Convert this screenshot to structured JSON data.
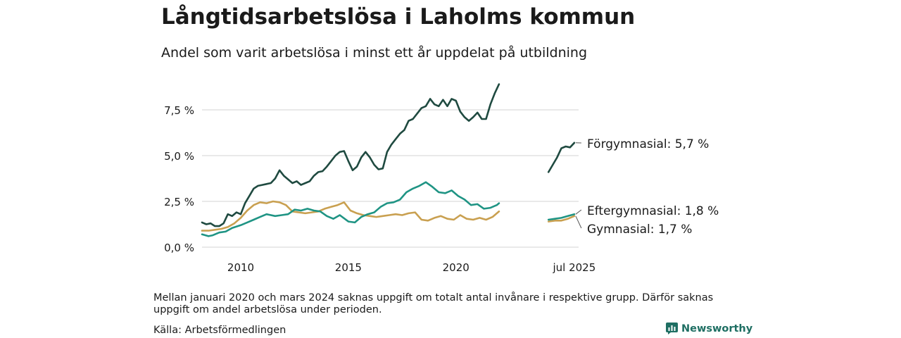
{
  "title": "Långtidsarbetslösa i Laholms kommun",
  "subtitle": "Andel som varit arbetslösa i minst ett år uppdelat på utbildning",
  "note": "Mellan januari 2020 och mars 2024 saknas uppgift om totalt antal invånare i respektive grupp. Därför saknas uppgift om andel arbetslösa under perioden.",
  "source": "Källa: Arbetsförmedlingen",
  "brand": "Newsworthy",
  "chart_data": {
    "type": "line",
    "y_ticks": [
      "0,0 %",
      "2,5 %",
      "5,0 %",
      "7,5 %"
    ],
    "y_tick_values": [
      0,
      2.5,
      5.0,
      7.5
    ],
    "ylim": [
      0,
      9.2
    ],
    "x_ticks": [
      "2010",
      "2015",
      "2020",
      "jul 2025"
    ],
    "x_tick_values": [
      2010,
      2015,
      2020,
      2025.5
    ],
    "grid": true,
    "series": [
      {
        "name": "Förgymnasial",
        "end_label": "Förgymnasial: 5,7 %",
        "color": "#1f4a40",
        "points": [
          [
            2008.2,
            1.35
          ],
          [
            2008.4,
            1.25
          ],
          [
            2008.6,
            1.3
          ],
          [
            2008.8,
            1.15
          ],
          [
            2009.0,
            1.15
          ],
          [
            2009.2,
            1.3
          ],
          [
            2009.4,
            1.8
          ],
          [
            2009.6,
            1.7
          ],
          [
            2009.8,
            1.9
          ],
          [
            2010.0,
            1.8
          ],
          [
            2010.2,
            2.4
          ],
          [
            2010.4,
            2.8
          ],
          [
            2010.6,
            3.2
          ],
          [
            2010.8,
            3.35
          ],
          [
            2011.0,
            3.4
          ],
          [
            2011.2,
            3.45
          ],
          [
            2011.4,
            3.5
          ],
          [
            2011.6,
            3.75
          ],
          [
            2011.8,
            4.2
          ],
          [
            2012.0,
            3.9
          ],
          [
            2012.2,
            3.7
          ],
          [
            2012.4,
            3.5
          ],
          [
            2012.6,
            3.6
          ],
          [
            2012.8,
            3.4
          ],
          [
            2013.0,
            3.5
          ],
          [
            2013.2,
            3.6
          ],
          [
            2013.4,
            3.9
          ],
          [
            2013.6,
            4.1
          ],
          [
            2013.8,
            4.15
          ],
          [
            2014.0,
            4.4
          ],
          [
            2014.2,
            4.7
          ],
          [
            2014.4,
            5.0
          ],
          [
            2014.6,
            5.2
          ],
          [
            2014.8,
            5.25
          ],
          [
            2015.0,
            4.7
          ],
          [
            2015.2,
            4.2
          ],
          [
            2015.4,
            4.4
          ],
          [
            2015.6,
            4.9
          ],
          [
            2015.8,
            5.2
          ],
          [
            2016.0,
            4.9
          ],
          [
            2016.2,
            4.5
          ],
          [
            2016.4,
            4.25
          ],
          [
            2016.6,
            4.3
          ],
          [
            2016.8,
            5.2
          ],
          [
            2017.0,
            5.6
          ],
          [
            2017.2,
            5.9
          ],
          [
            2017.4,
            6.2
          ],
          [
            2017.6,
            6.4
          ],
          [
            2017.8,
            6.9
          ],
          [
            2018.0,
            7.0
          ],
          [
            2018.2,
            7.3
          ],
          [
            2018.4,
            7.6
          ],
          [
            2018.6,
            7.7
          ],
          [
            2018.8,
            8.1
          ],
          [
            2019.0,
            7.8
          ],
          [
            2019.2,
            7.7
          ],
          [
            2019.4,
            8.05
          ],
          [
            2019.6,
            7.7
          ],
          [
            2019.8,
            8.1
          ],
          [
            2020.0,
            8.0
          ],
          [
            2020.2,
            7.4
          ],
          [
            2020.4,
            7.1
          ],
          [
            2020.6,
            6.9
          ],
          [
            2020.8,
            7.1
          ],
          [
            2021.0,
            7.35
          ],
          [
            2021.2,
            7.0
          ],
          [
            2021.4,
            7.0
          ],
          [
            2021.6,
            7.8
          ],
          [
            2021.8,
            8.4
          ],
          [
            2022.0,
            8.9
          ]
        ],
        "points_recent": [
          [
            2024.3,
            4.1
          ],
          [
            2024.5,
            4.5
          ],
          [
            2024.7,
            4.9
          ],
          [
            2024.9,
            5.4
          ],
          [
            2025.1,
            5.5
          ],
          [
            2025.3,
            5.45
          ],
          [
            2025.5,
            5.7
          ]
        ]
      },
      {
        "name": "Eftergymnasial",
        "end_label": "Eftergymnasial: 1,8 %",
        "color": "#1f9484",
        "points": [
          [
            2008.2,
            0.7
          ],
          [
            2008.5,
            0.6
          ],
          [
            2008.7,
            0.65
          ],
          [
            2009.0,
            0.8
          ],
          [
            2009.3,
            0.85
          ],
          [
            2009.6,
            1.05
          ],
          [
            2010.0,
            1.2
          ],
          [
            2010.3,
            1.35
          ],
          [
            2010.6,
            1.5
          ],
          [
            2010.9,
            1.65
          ],
          [
            2011.2,
            1.8
          ],
          [
            2011.6,
            1.7
          ],
          [
            2011.9,
            1.75
          ],
          [
            2012.2,
            1.8
          ],
          [
            2012.5,
            2.05
          ],
          [
            2012.8,
            2.0
          ],
          [
            2013.1,
            2.1
          ],
          [
            2013.4,
            2.0
          ],
          [
            2013.7,
            1.95
          ],
          [
            2014.0,
            1.7
          ],
          [
            2014.3,
            1.55
          ],
          [
            2014.6,
            1.75
          ],
          [
            2015.0,
            1.4
          ],
          [
            2015.3,
            1.35
          ],
          [
            2015.6,
            1.65
          ],
          [
            2015.9,
            1.8
          ],
          [
            2016.2,
            1.9
          ],
          [
            2016.5,
            2.2
          ],
          [
            2016.8,
            2.4
          ],
          [
            2017.1,
            2.45
          ],
          [
            2017.4,
            2.6
          ],
          [
            2017.7,
            3.0
          ],
          [
            2018.0,
            3.2
          ],
          [
            2018.3,
            3.35
          ],
          [
            2018.6,
            3.55
          ],
          [
            2018.9,
            3.3
          ],
          [
            2019.2,
            3.0
          ],
          [
            2019.5,
            2.95
          ],
          [
            2019.8,
            3.1
          ],
          [
            2020.1,
            2.8
          ],
          [
            2020.4,
            2.6
          ],
          [
            2020.7,
            2.3
          ],
          [
            2021.0,
            2.35
          ],
          [
            2021.3,
            2.1
          ],
          [
            2021.6,
            2.15
          ],
          [
            2021.9,
            2.3
          ],
          [
            2022.0,
            2.4
          ]
        ],
        "points_recent": [
          [
            2024.3,
            1.5
          ],
          [
            2024.6,
            1.55
          ],
          [
            2024.9,
            1.6
          ],
          [
            2025.2,
            1.7
          ],
          [
            2025.5,
            1.8
          ]
        ]
      },
      {
        "name": "Gymnasial",
        "end_label": "Gymnasial: 1,7 %",
        "color": "#c9a050",
        "points": [
          [
            2008.2,
            0.9
          ],
          [
            2008.5,
            0.9
          ],
          [
            2008.8,
            0.95
          ],
          [
            2009.1,
            1.0
          ],
          [
            2009.4,
            1.1
          ],
          [
            2009.7,
            1.3
          ],
          [
            2010.0,
            1.6
          ],
          [
            2010.3,
            2.0
          ],
          [
            2010.6,
            2.3
          ],
          [
            2010.9,
            2.45
          ],
          [
            2011.2,
            2.4
          ],
          [
            2011.5,
            2.5
          ],
          [
            2011.8,
            2.45
          ],
          [
            2012.1,
            2.3
          ],
          [
            2012.4,
            1.95
          ],
          [
            2012.7,
            1.9
          ],
          [
            2013.0,
            1.85
          ],
          [
            2013.3,
            1.9
          ],
          [
            2013.6,
            1.95
          ],
          [
            2013.9,
            2.1
          ],
          [
            2014.2,
            2.2
          ],
          [
            2014.5,
            2.3
          ],
          [
            2014.8,
            2.45
          ],
          [
            2015.1,
            2.0
          ],
          [
            2015.4,
            1.85
          ],
          [
            2015.7,
            1.75
          ],
          [
            2016.0,
            1.7
          ],
          [
            2016.3,
            1.65
          ],
          [
            2016.6,
            1.7
          ],
          [
            2016.9,
            1.75
          ],
          [
            2017.2,
            1.8
          ],
          [
            2017.5,
            1.75
          ],
          [
            2017.8,
            1.85
          ],
          [
            2018.1,
            1.9
          ],
          [
            2018.4,
            1.5
          ],
          [
            2018.7,
            1.45
          ],
          [
            2019.0,
            1.6
          ],
          [
            2019.3,
            1.7
          ],
          [
            2019.6,
            1.55
          ],
          [
            2019.9,
            1.5
          ],
          [
            2020.2,
            1.75
          ],
          [
            2020.5,
            1.55
          ],
          [
            2020.8,
            1.5
          ],
          [
            2021.1,
            1.6
          ],
          [
            2021.4,
            1.5
          ],
          [
            2021.7,
            1.65
          ],
          [
            2022.0,
            1.95
          ]
        ],
        "points_recent": [
          [
            2024.3,
            1.4
          ],
          [
            2024.6,
            1.45
          ],
          [
            2024.9,
            1.45
          ],
          [
            2025.2,
            1.55
          ],
          [
            2025.5,
            1.7
          ]
        ]
      }
    ]
  }
}
